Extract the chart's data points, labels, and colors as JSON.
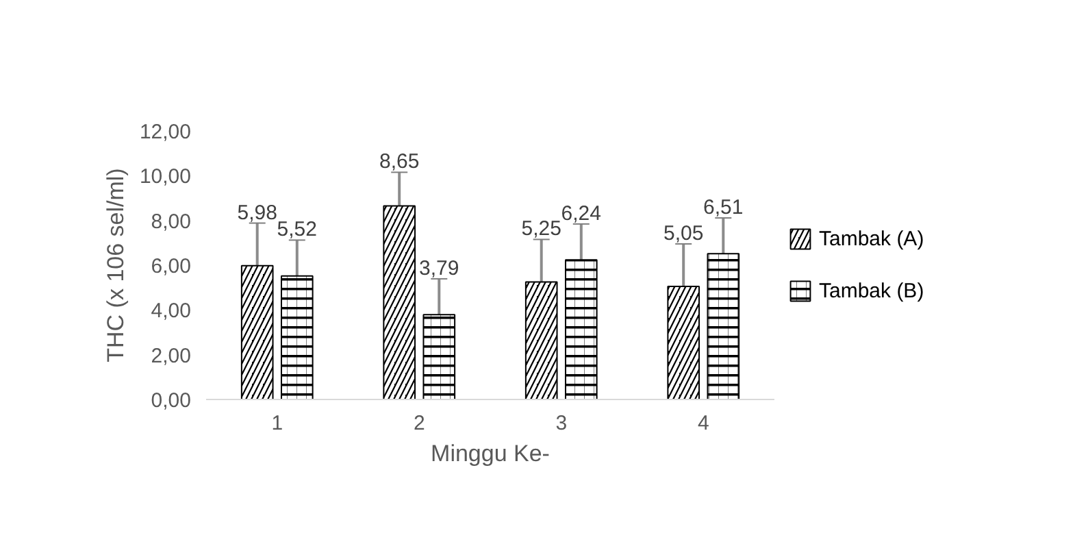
{
  "chart_data": {
    "type": "bar",
    "xlabel": "Minggu Ke-",
    "ylabel": "THC (x 106 sel/ml)",
    "categories": [
      "1",
      "2",
      "3",
      "4"
    ],
    "series": [
      {
        "name": "Tambak (A)",
        "color": "#000000",
        "values": [
          5.98,
          8.65,
          5.25,
          5.05
        ],
        "value_labels": [
          "5,98",
          "8,65",
          "5,25",
          "5,05"
        ],
        "errors": [
          1.9,
          1.5,
          1.9,
          1.9
        ]
      },
      {
        "name": "Tambak (B)",
        "color": "#000000",
        "values": [
          5.52,
          3.79,
          6.24,
          6.51
        ],
        "value_labels": [
          "5,52",
          "3,79",
          "6,24",
          "6,51"
        ],
        "errors": [
          1.6,
          1.6,
          1.6,
          1.6
        ]
      }
    ],
    "ylim": [
      0,
      12
    ],
    "yticks": [
      {
        "value": 0,
        "label": "0,00"
      },
      {
        "value": 2,
        "label": "2,00"
      },
      {
        "value": 4,
        "label": "4,00"
      },
      {
        "value": 6,
        "label": "6,00"
      },
      {
        "value": 8,
        "label": "8,00"
      },
      {
        "value": 10,
        "label": "10,00"
      },
      {
        "value": 12,
        "label": "12,00"
      }
    ],
    "grid": false,
    "legend": "right"
  }
}
